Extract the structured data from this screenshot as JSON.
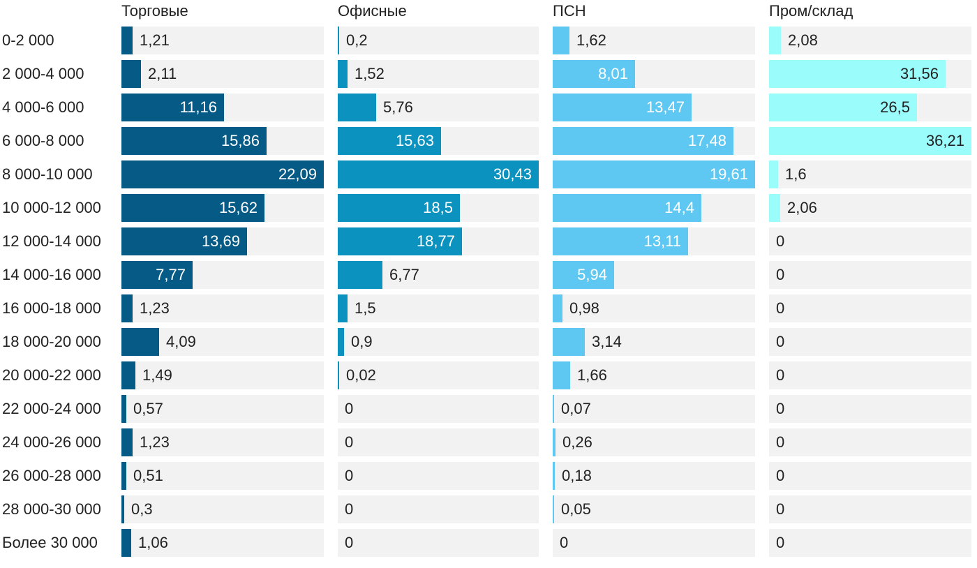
{
  "chart_data": {
    "type": "bar",
    "orientation": "horizontal",
    "layout": "small-multiples",
    "categories": [
      "0-2 000",
      "2 000-4 000",
      "4 000-6 000",
      "6 000-8 000",
      "8 000-10 000",
      "10 000-12 000",
      "12 000-14 000",
      "14 000-16 000",
      "16 000-18 000",
      "18 000-20 000",
      "20 000-22 000",
      "22 000-24 000",
      "24 000-26 000",
      "26 000-28 000",
      "28 000-30 000",
      "Более 30 000"
    ],
    "series": [
      {
        "name": "Торговые",
        "color": "#055b86",
        "max": 22.09,
        "values": [
          1.21,
          2.11,
          11.16,
          15.86,
          22.09,
          15.62,
          13.69,
          7.77,
          1.23,
          4.09,
          1.49,
          0.57,
          1.23,
          0.51,
          0.3,
          1.06
        ],
        "labels": [
          "1,21",
          "2,11",
          "11,16",
          "15,86",
          "22,09",
          "15,62",
          "13,69",
          "7,77",
          "1,23",
          "4,09",
          "1,49",
          "0,57",
          "1,23",
          "0,51",
          "0,3",
          "1,06"
        ]
      },
      {
        "name": "Офисные",
        "color": "#0b92bf",
        "max": 30.43,
        "values": [
          0.2,
          1.52,
          5.76,
          15.63,
          30.43,
          18.5,
          18.77,
          6.77,
          1.5,
          0.9,
          0.02,
          0,
          0,
          0,
          0,
          0
        ],
        "labels": [
          "0,2",
          "1,52",
          "5,76",
          "15,63",
          "30,43",
          "18,5",
          "18,77",
          "6,77",
          "1,5",
          "0,9",
          "0,02",
          "0",
          "0",
          "0",
          "0",
          "0"
        ]
      },
      {
        "name": "ПСН",
        "color": "#5ec8f2",
        "max": 19.61,
        "values": [
          1.62,
          8.01,
          13.47,
          17.48,
          19.61,
          14.4,
          13.11,
          5.94,
          0.98,
          3.14,
          1.66,
          0.07,
          0.26,
          0.18,
          0.05,
          0
        ],
        "labels": [
          "1,62",
          "8,01",
          "13,47",
          "17,48",
          "19,61",
          "14,4",
          "13,11",
          "5,94",
          "0,98",
          "3,14",
          "1,66",
          "0,07",
          "0,26",
          "0,18",
          "0,05",
          "0"
        ]
      },
      {
        "name": "Пром/склад",
        "color": "#9bfcfc",
        "max": 36.21,
        "values": [
          2.08,
          31.56,
          26.5,
          36.21,
          1.6,
          2.06,
          0,
          0,
          0,
          0,
          0,
          0,
          0,
          0,
          0,
          0
        ],
        "labels": [
          "2,08",
          "31,56",
          "26,5",
          "36,21",
          "1,6",
          "2,06",
          "0",
          "0",
          "0",
          "0",
          "0",
          "0",
          "0",
          "0",
          "0",
          "0"
        ]
      }
    ],
    "colors": {
      "track": "#f2f2f2",
      "label_inside": "#ffffff",
      "label_outside": "#222222"
    },
    "grid": false,
    "legend": "none"
  }
}
